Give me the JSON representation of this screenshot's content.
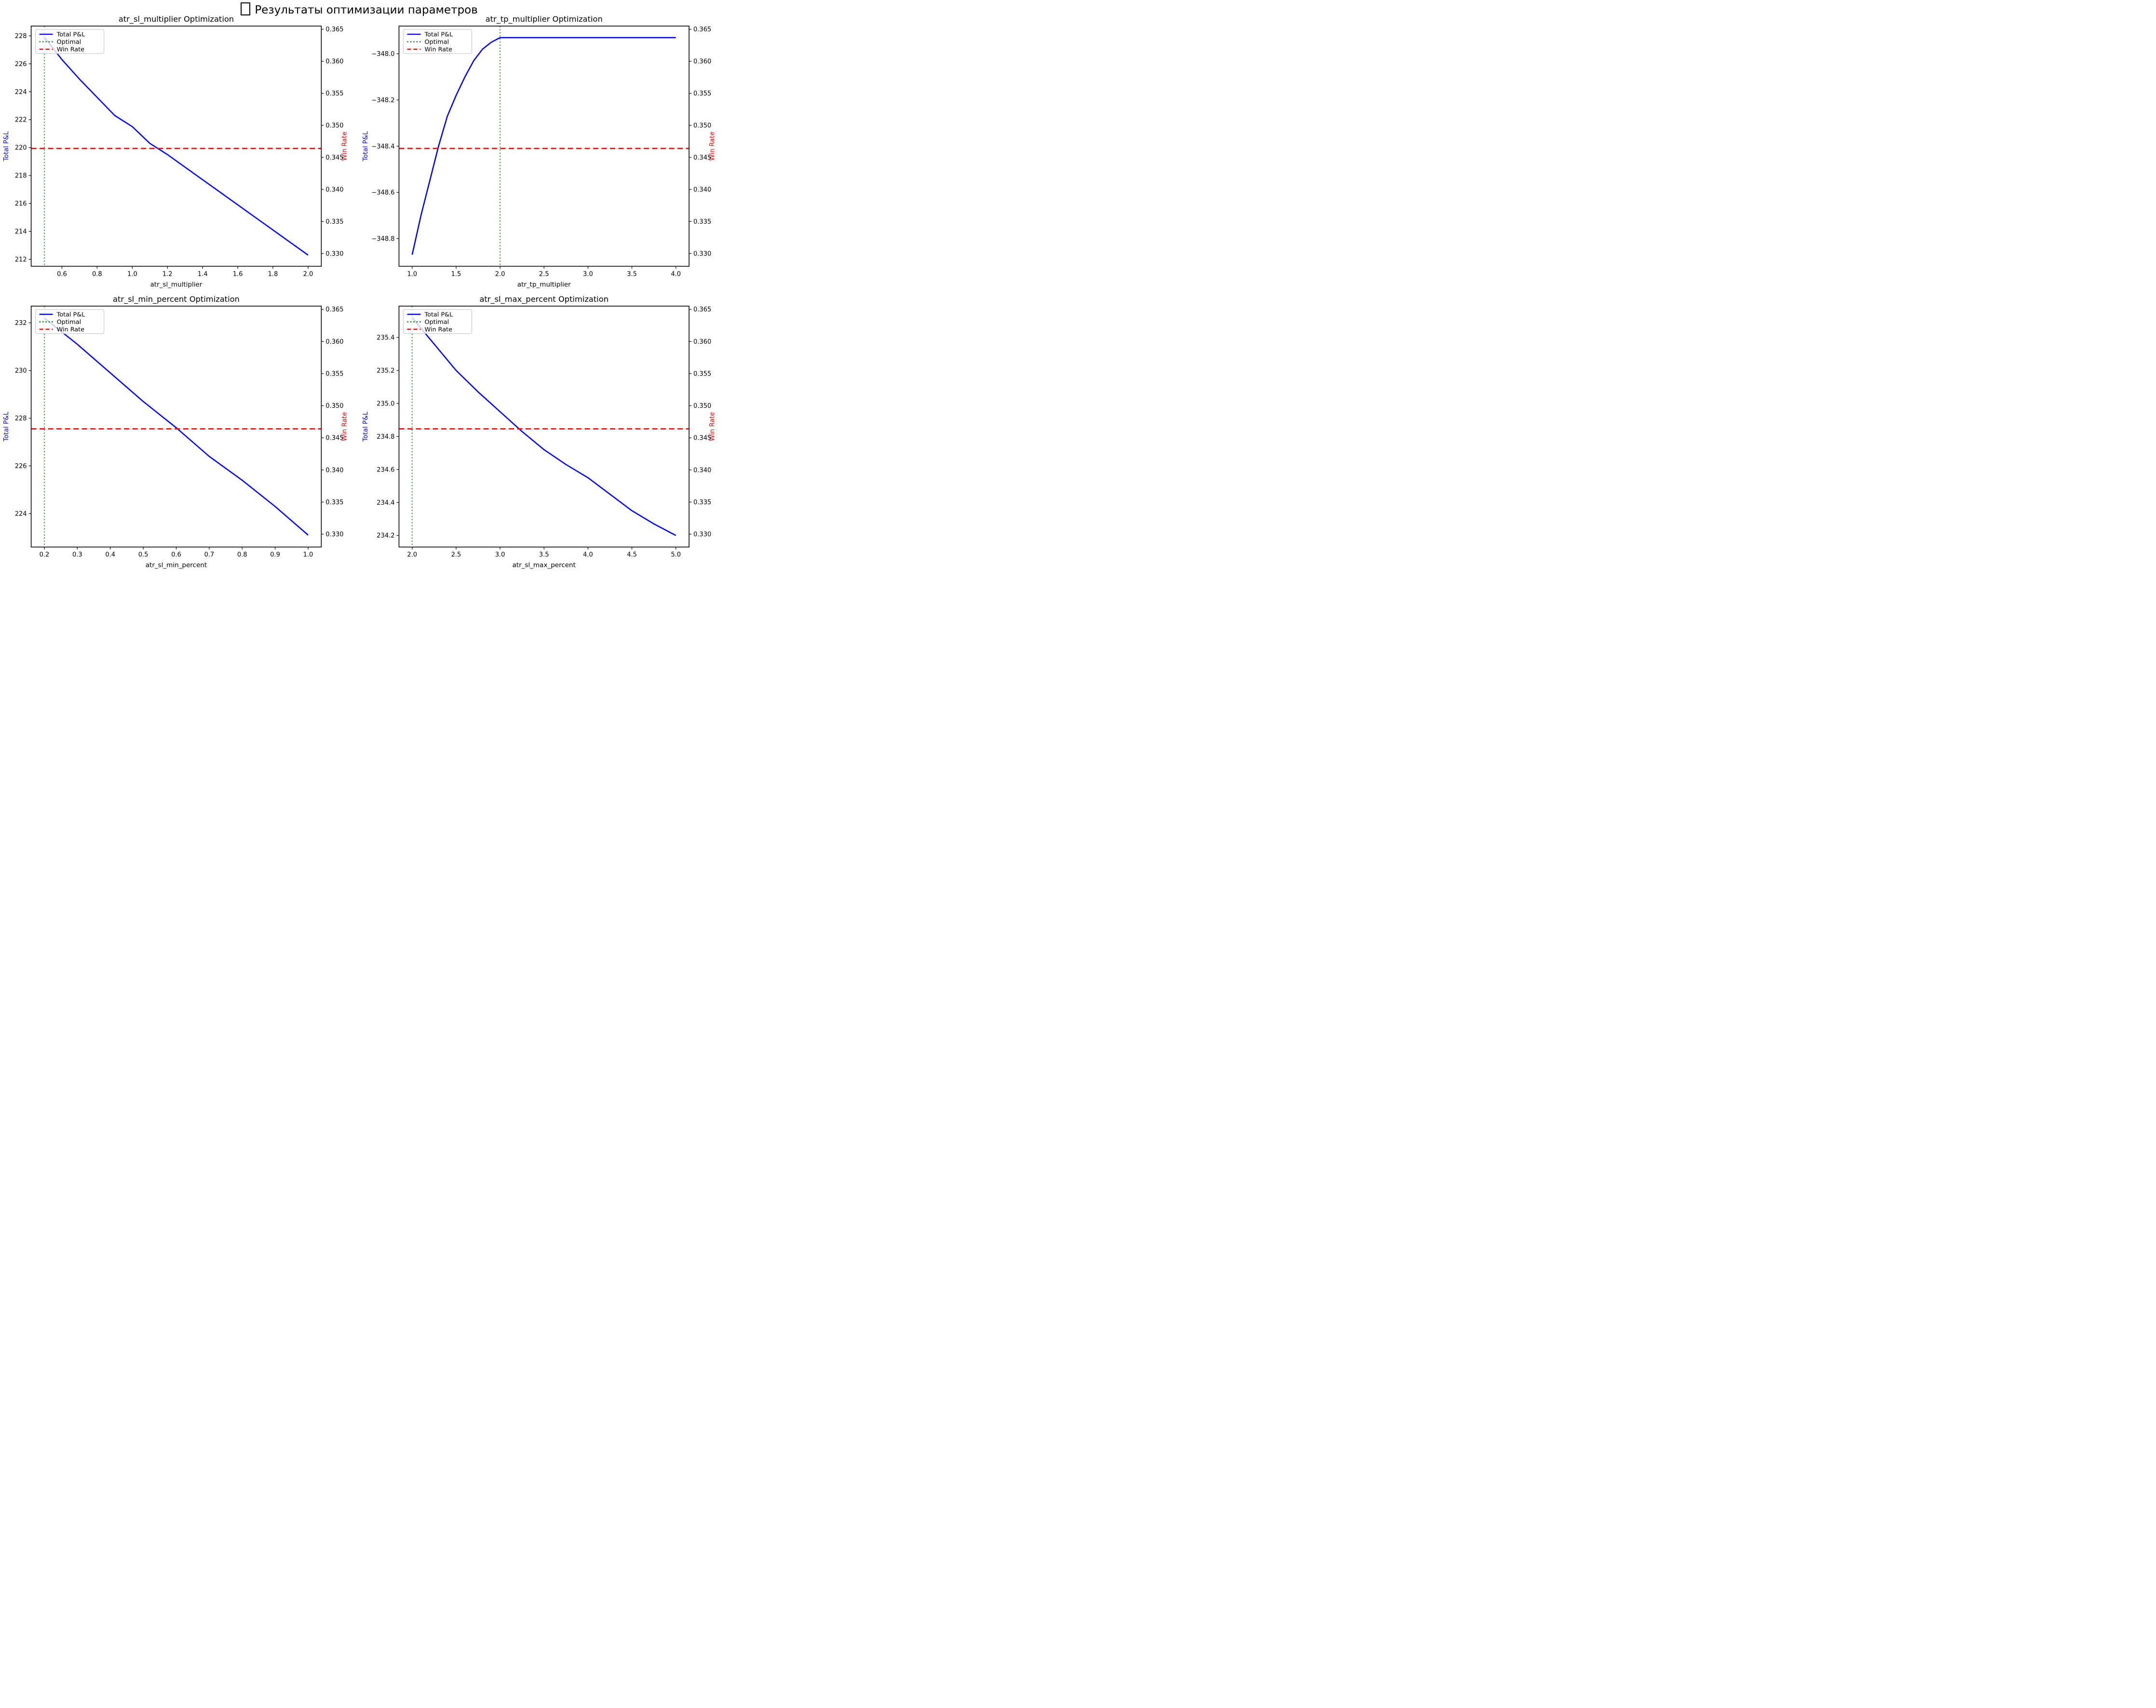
{
  "header": {
    "missing_glyph": "🎯",
    "title": "Результаты оптимизации параметров"
  },
  "legend": {
    "position": "upper left",
    "items": [
      {
        "label": "Total P&L",
        "color": "#0000ff",
        "style": "solid"
      },
      {
        "label": "Optimal",
        "color": "#008000",
        "style": "dotted"
      },
      {
        "label": "Win Rate",
        "color": "#ff0000",
        "style": "dashed"
      }
    ]
  },
  "colors": {
    "pnl_line": "#0000ff",
    "optimal_line": "#008000",
    "winrate_line": "#ff0000",
    "axis": "#000000",
    "legend_border": "#cccccc",
    "ylabel_left": "#0000ff",
    "ylabel_right": "#ff0000",
    "tick_text": "#000000"
  },
  "chart_data": [
    {
      "type": "line",
      "title": "atr_sl_multiplier Optimization",
      "xlabel": "atr_sl_multiplier",
      "ylabel_left": "Total P&L",
      "ylabel_right": "Win Rate",
      "grid": false,
      "legend_position": "upper left",
      "series": [
        {
          "name": "Total P&L",
          "x": [
            0.5,
            0.6,
            0.7,
            0.8,
            0.9,
            1.0,
            1.1,
            1.2,
            1.3,
            1.4,
            1.5,
            1.6,
            1.7,
            1.8,
            1.9,
            2.0
          ],
          "y": [
            227.9,
            226.3,
            224.9,
            223.6,
            222.3,
            221.5,
            220.3,
            219.5,
            218.6,
            217.7,
            216.8,
            215.9,
            215.0,
            214.1,
            213.2,
            212.3
          ]
        }
      ],
      "optimal_x": 0.5,
      "win_rate": 0.3464,
      "xlim": [
        0.425,
        2.075
      ],
      "ylim_left": [
        211.5,
        228.7
      ],
      "ylim_right": [
        0.328,
        0.3655
      ],
      "x_ticks": {
        "values": [
          0.6,
          0.8,
          1.0,
          1.2,
          1.4,
          1.6,
          1.8,
          2.0
        ],
        "labels": [
          "0.6",
          "0.8",
          "1.0",
          "1.2",
          "1.4",
          "1.6",
          "1.8",
          "2.0"
        ]
      },
      "y_ticks_left": {
        "values": [
          212,
          214,
          216,
          218,
          220,
          222,
          224,
          226,
          228
        ],
        "labels": [
          "212",
          "214",
          "216",
          "218",
          "220",
          "222",
          "224",
          "226",
          "228"
        ]
      },
      "y_ticks_right": {
        "values": [
          0.33,
          0.335,
          0.34,
          0.345,
          0.35,
          0.355,
          0.36,
          0.365
        ],
        "labels": [
          "0.330",
          "0.335",
          "0.340",
          "0.345",
          "0.350",
          "0.355",
          "0.360",
          "0.365"
        ]
      }
    },
    {
      "type": "line",
      "title": "atr_tp_multiplier Optimization",
      "xlabel": "atr_tp_multiplier",
      "ylabel_left": "Total P&L",
      "ylabel_right": "Win Rate",
      "grid": false,
      "legend_position": "upper left",
      "series": [
        {
          "name": "Total P&L",
          "x": [
            1.0,
            1.1,
            1.2,
            1.3,
            1.4,
            1.5,
            1.6,
            1.7,
            1.8,
            1.9,
            2.0,
            2.5,
            3.0,
            3.5,
            4.0
          ],
          "y": [
            -348.87,
            -348.7,
            -348.55,
            -348.4,
            -348.27,
            -348.18,
            -348.1,
            -348.03,
            -347.98,
            -347.95,
            -347.93,
            -347.93,
            -347.93,
            -347.93,
            -347.93
          ]
        }
      ],
      "optimal_x": 2.0,
      "win_rate": 0.3464,
      "xlim": [
        0.85,
        4.15
      ],
      "ylim_left": [
        -348.92,
        -347.88
      ],
      "ylim_right": [
        0.328,
        0.3655
      ],
      "x_ticks": {
        "values": [
          1.0,
          1.5,
          2.0,
          2.5,
          3.0,
          3.5,
          4.0
        ],
        "labels": [
          "1.0",
          "1.5",
          "2.0",
          "2.5",
          "3.0",
          "3.5",
          "4.0"
        ]
      },
      "y_ticks_left": {
        "values": [
          -348.8,
          -348.6,
          -348.4,
          -348.2,
          -348.0
        ],
        "labels": [
          "−348.8",
          "−348.6",
          "−348.4",
          "−348.2",
          "−348.0"
        ]
      },
      "y_ticks_right": {
        "values": [
          0.33,
          0.335,
          0.34,
          0.345,
          0.35,
          0.355,
          0.36,
          0.365
        ],
        "labels": [
          "0.330",
          "0.335",
          "0.340",
          "0.345",
          "0.350",
          "0.355",
          "0.360",
          "0.365"
        ]
      }
    },
    {
      "type": "line",
      "title": "atr_sl_min_percent Optimization",
      "xlabel": "atr_sl_min_percent",
      "ylabel_left": "Total P&L",
      "ylabel_right": "Win Rate",
      "grid": false,
      "legend_position": "upper left",
      "series": [
        {
          "name": "Total P&L",
          "x": [
            0.2,
            0.3,
            0.4,
            0.5,
            0.6,
            0.7,
            0.8,
            0.9,
            1.0
          ],
          "y": [
            232.2,
            231.1,
            229.9,
            228.7,
            227.6,
            226.4,
            225.4,
            224.3,
            223.1
          ]
        }
      ],
      "optimal_x": 0.2,
      "win_rate": 0.3464,
      "xlim": [
        0.16,
        1.04
      ],
      "ylim_left": [
        222.6,
        232.7
      ],
      "ylim_right": [
        0.328,
        0.3655
      ],
      "x_ticks": {
        "values": [
          0.2,
          0.3,
          0.4,
          0.5,
          0.6,
          0.7,
          0.8,
          0.9,
          1.0
        ],
        "labels": [
          "0.2",
          "0.3",
          "0.4",
          "0.5",
          "0.6",
          "0.7",
          "0.8",
          "0.9",
          "1.0"
        ]
      },
      "y_ticks_left": {
        "values": [
          224,
          226,
          228,
          230,
          232
        ],
        "labels": [
          "224",
          "226",
          "228",
          "230",
          "232"
        ]
      },
      "y_ticks_right": {
        "values": [
          0.33,
          0.335,
          0.34,
          0.345,
          0.35,
          0.355,
          0.36,
          0.365
        ],
        "labels": [
          "0.330",
          "0.335",
          "0.340",
          "0.345",
          "0.350",
          "0.355",
          "0.360",
          "0.365"
        ]
      }
    },
    {
      "type": "line",
      "title": "atr_sl_max_percent Optimization",
      "xlabel": "atr_sl_max_percent",
      "ylabel_left": "Total P&L",
      "ylabel_right": "Win Rate",
      "grid": false,
      "legend_position": "upper left",
      "series": [
        {
          "name": "Total P&L",
          "x": [
            2.0,
            2.25,
            2.5,
            2.75,
            3.0,
            3.25,
            3.5,
            3.75,
            4.0,
            4.25,
            4.5,
            4.75,
            5.0
          ],
          "y": [
            235.52,
            235.36,
            235.2,
            235.07,
            234.95,
            234.83,
            234.72,
            234.63,
            234.55,
            234.45,
            234.35,
            234.27,
            234.2
          ]
        }
      ],
      "optimal_x": 2.0,
      "win_rate": 0.3464,
      "xlim": [
        1.85,
        5.15
      ],
      "ylim_left": [
        234.13,
        235.59
      ],
      "ylim_right": [
        0.328,
        0.3655
      ],
      "x_ticks": {
        "values": [
          2.0,
          2.5,
          3.0,
          3.5,
          4.0,
          4.5,
          5.0
        ],
        "labels": [
          "2.0",
          "2.5",
          "3.0",
          "3.5",
          "4.0",
          "4.5",
          "5.0"
        ]
      },
      "y_ticks_left": {
        "values": [
          234.2,
          234.4,
          234.6,
          234.8,
          235.0,
          235.2,
          235.4
        ],
        "labels": [
          "234.2",
          "234.4",
          "234.6",
          "234.8",
          "235.0",
          "235.2",
          "235.4"
        ]
      },
      "y_ticks_right": {
        "values": [
          0.33,
          0.335,
          0.34,
          0.345,
          0.35,
          0.355,
          0.36,
          0.365
        ],
        "labels": [
          "0.330",
          "0.335",
          "0.340",
          "0.345",
          "0.350",
          "0.355",
          "0.360",
          "0.365"
        ]
      }
    }
  ]
}
